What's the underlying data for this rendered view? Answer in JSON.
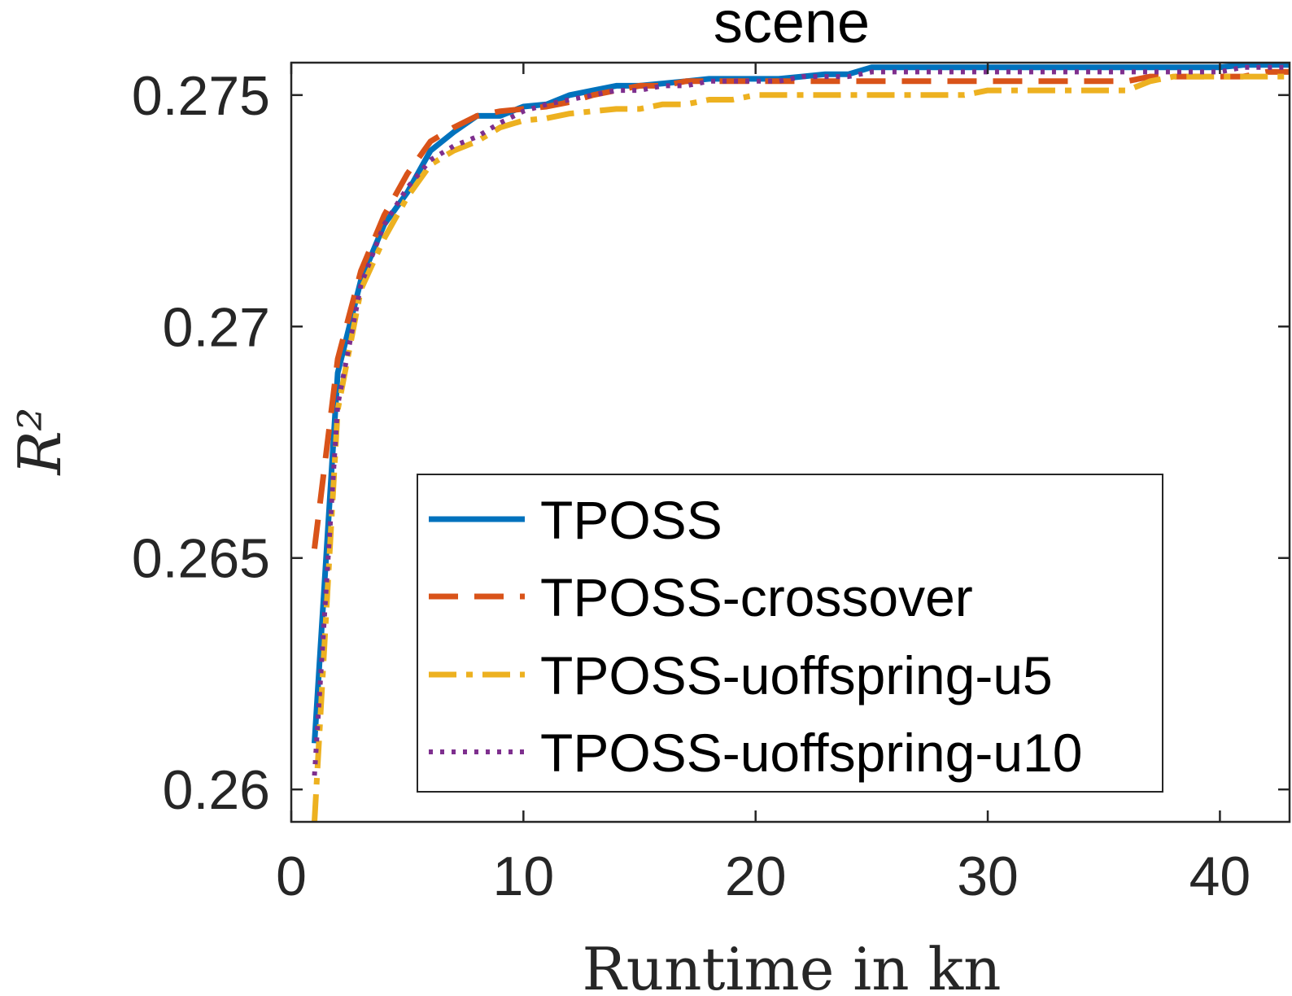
{
  "chart_data": {
    "type": "line",
    "title": "scene",
    "xlabel": "Runtime in kn",
    "ylabel": "R²",
    "xlim": [
      0,
      43
    ],
    "ylim": [
      0.2593,
      0.2757
    ],
    "xticks": [
      0,
      10,
      20,
      30,
      40
    ],
    "yticks": [
      0.26,
      0.265,
      0.27,
      0.275
    ],
    "ytick_labels": [
      "0.26",
      "0.265",
      "0.27",
      "0.275"
    ],
    "grid": false,
    "box": true,
    "legend_position": "inside-lower-right",
    "series": [
      {
        "name": "TPOSS",
        "color": "#0072BD",
        "style": "solid",
        "x": [
          1,
          2,
          3,
          4,
          5,
          6,
          7,
          8,
          9,
          10,
          11,
          12,
          13,
          14,
          15,
          16,
          17,
          18,
          19,
          20,
          21,
          22,
          23,
          24,
          25,
          26,
          27,
          28,
          29,
          30,
          31,
          32,
          33,
          34,
          35,
          36,
          37,
          38,
          39,
          40,
          41,
          42,
          43
        ],
        "y": [
          0.261,
          0.269,
          0.271,
          0.2722,
          0.2729,
          0.2738,
          0.2742,
          0.27455,
          0.27455,
          0.27475,
          0.2748,
          0.275,
          0.2751,
          0.2752,
          0.2752,
          0.27525,
          0.2753,
          0.27535,
          0.27535,
          0.27535,
          0.27535,
          0.2754,
          0.27545,
          0.27545,
          0.2756,
          0.2756,
          0.2756,
          0.2756,
          0.2756,
          0.2756,
          0.2756,
          0.2756,
          0.2756,
          0.2756,
          0.2756,
          0.2756,
          0.2756,
          0.2756,
          0.2756,
          0.2756,
          0.27565,
          0.27565,
          0.27565
        ]
      },
      {
        "name": "TPOSS-crossover",
        "color": "#D95319",
        "style": "dashed",
        "x": [
          1,
          2,
          3,
          4,
          5,
          6,
          7,
          8,
          9,
          10,
          11,
          12,
          13,
          14,
          15,
          16,
          17,
          18,
          19,
          20,
          21,
          22,
          23,
          24,
          25,
          26,
          27,
          28,
          29,
          30,
          31,
          32,
          33,
          34,
          35,
          36,
          37,
          38,
          39,
          40,
          41,
          42,
          43
        ],
        "y": [
          0.2652,
          0.2693,
          0.2712,
          0.2724,
          0.2733,
          0.274,
          0.2743,
          0.27455,
          0.27465,
          0.2747,
          0.27475,
          0.27485,
          0.275,
          0.2751,
          0.2752,
          0.2752,
          0.2753,
          0.2753,
          0.2753,
          0.2753,
          0.2753,
          0.2753,
          0.2753,
          0.2753,
          0.2753,
          0.2753,
          0.2753,
          0.2753,
          0.2753,
          0.2753,
          0.2753,
          0.2753,
          0.2753,
          0.2753,
          0.2753,
          0.2753,
          0.2754,
          0.2754,
          0.2754,
          0.2754,
          0.2754,
          0.2755,
          0.2755
        ]
      },
      {
        "name": "TPOSS-uoffspring-u5",
        "color": "#EDB120",
        "style": "dashdot",
        "x": [
          1,
          2,
          3,
          4,
          5,
          6,
          7,
          8,
          9,
          10,
          11,
          12,
          13,
          14,
          15,
          16,
          17,
          18,
          19,
          20,
          21,
          22,
          23,
          24,
          25,
          26,
          27,
          28,
          29,
          30,
          31,
          32,
          33,
          34,
          35,
          36,
          37,
          38,
          39,
          40,
          41,
          42,
          43
        ],
        "y": [
          0.2593,
          0.2682,
          0.2708,
          0.2719,
          0.2728,
          0.2735,
          0.2738,
          0.274,
          0.2743,
          0.27445,
          0.2745,
          0.2746,
          0.27465,
          0.2747,
          0.2747,
          0.2748,
          0.2748,
          0.2749,
          0.2749,
          0.275,
          0.275,
          0.275,
          0.275,
          0.275,
          0.275,
          0.275,
          0.275,
          0.275,
          0.275,
          0.2751,
          0.2751,
          0.2751,
          0.2751,
          0.2751,
          0.2751,
          0.2751,
          0.2753,
          0.2754,
          0.2754,
          0.2754,
          0.2754,
          0.2754,
          0.2754
        ]
      },
      {
        "name": "TPOSS-uoffspring-u10",
        "color": "#7E2F8E",
        "style": "dotted",
        "x": [
          1,
          2,
          3,
          4,
          5,
          6,
          7,
          8,
          9,
          10,
          11,
          12,
          13,
          14,
          15,
          16,
          17,
          18,
          19,
          20,
          21,
          22,
          23,
          24,
          25,
          26,
          27,
          28,
          29,
          30,
          31,
          32,
          33,
          34,
          35,
          36,
          37,
          38,
          39,
          40,
          41,
          42,
          43
        ],
        "y": [
          0.2603,
          0.2683,
          0.2709,
          0.2722,
          0.273,
          0.2736,
          0.2739,
          0.2741,
          0.2744,
          0.27465,
          0.2748,
          0.2749,
          0.275,
          0.2751,
          0.2751,
          0.2752,
          0.2752,
          0.2753,
          0.2753,
          0.2753,
          0.2753,
          0.2754,
          0.2754,
          0.2754,
          0.2755,
          0.2755,
          0.2755,
          0.2755,
          0.2755,
          0.2755,
          0.2755,
          0.2755,
          0.2755,
          0.2755,
          0.2755,
          0.2755,
          0.2755,
          0.2755,
          0.2755,
          0.2755,
          0.2756,
          0.2756,
          0.2756
        ]
      }
    ]
  }
}
